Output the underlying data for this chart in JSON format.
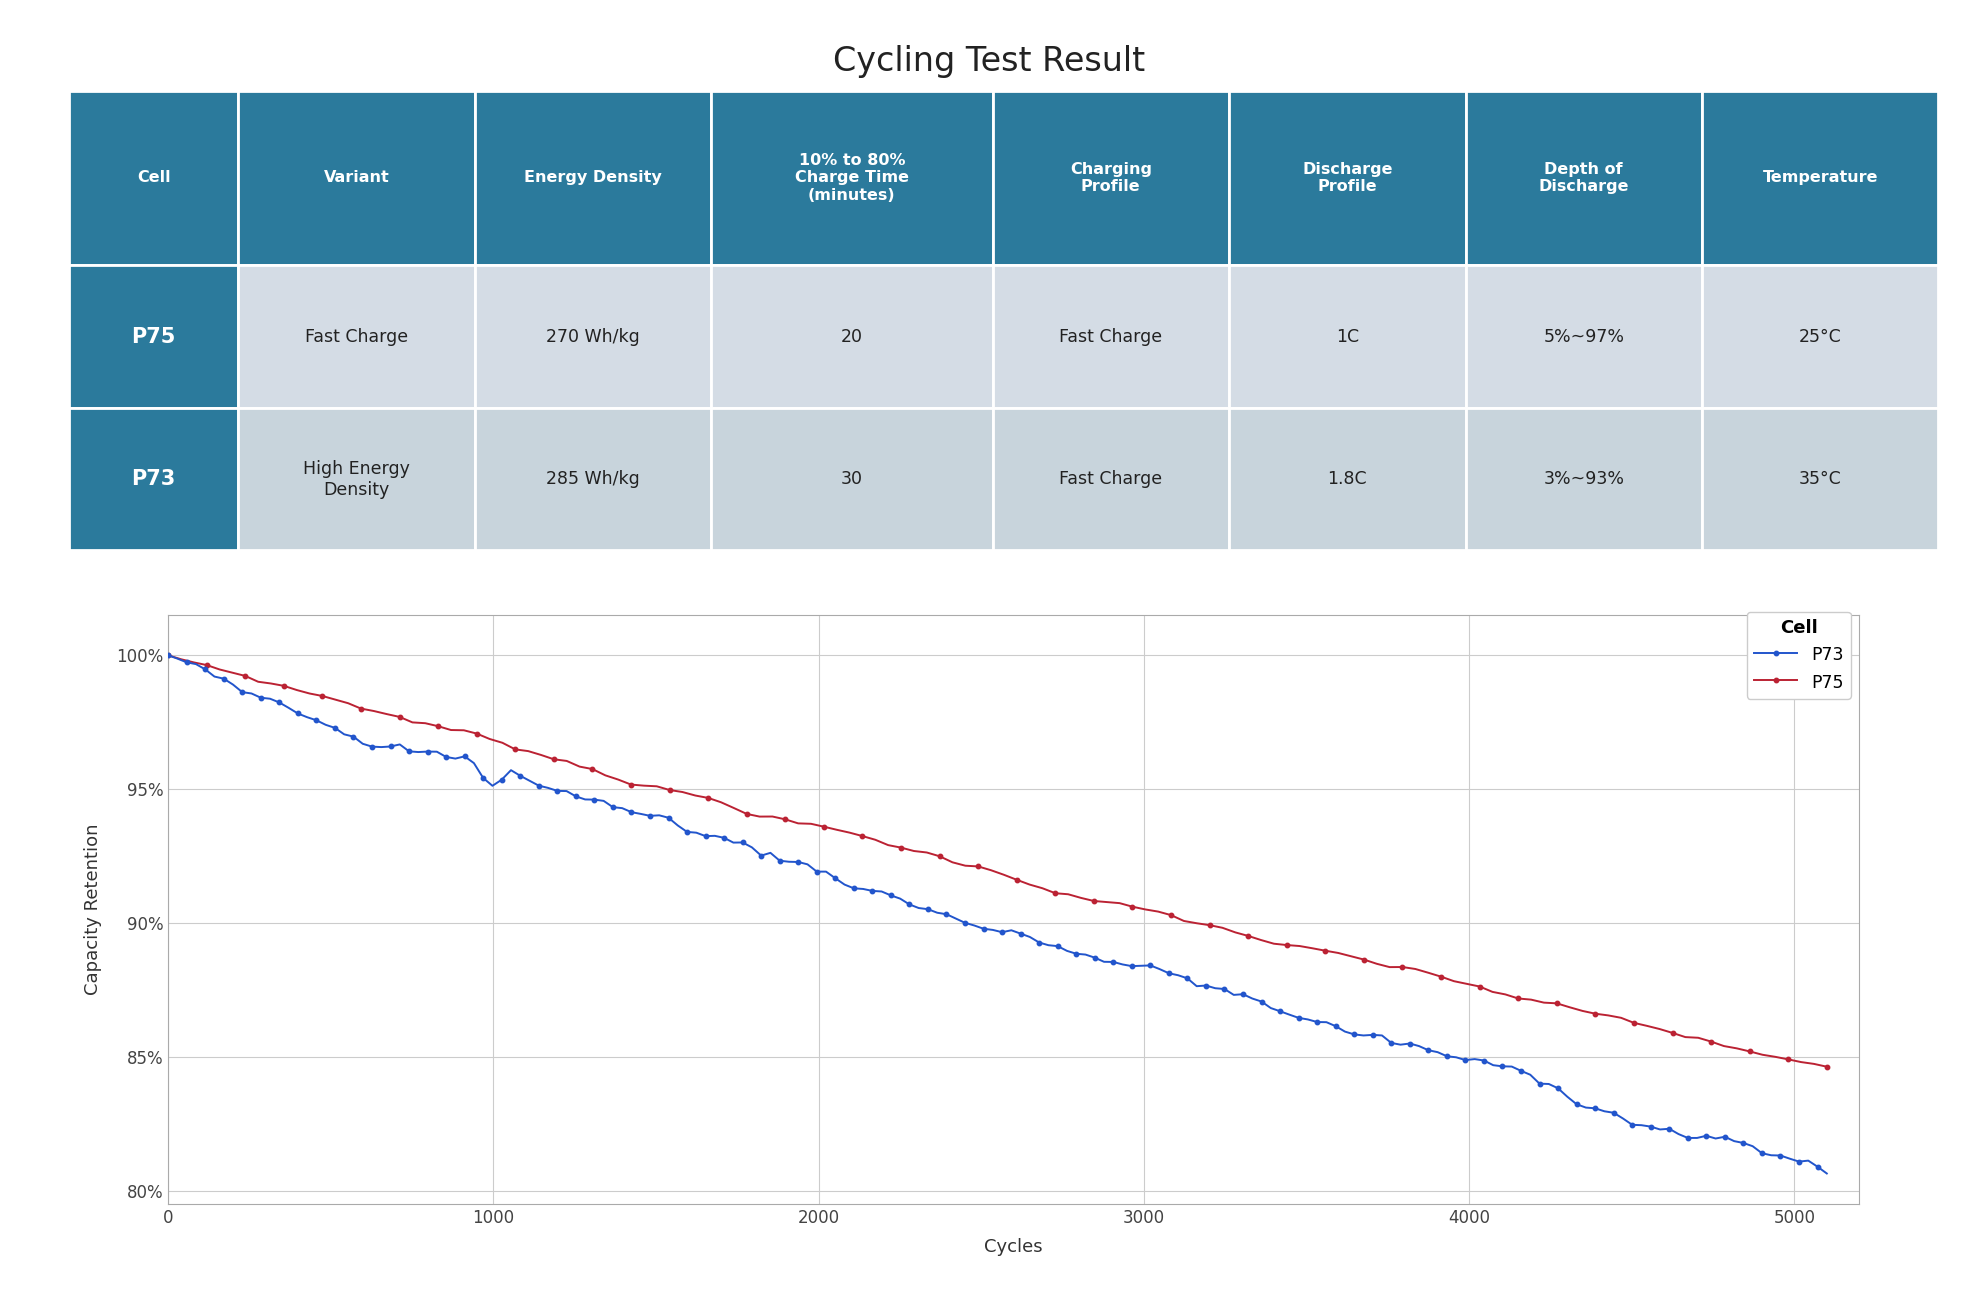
{
  "title": "Cycling Test Result",
  "title_fontsize": 24,
  "title_fontweight": "normal",
  "table": {
    "headers": [
      "Cell",
      "Variant",
      "Energy Density",
      "10% to 80%\nCharge Time\n(minutes)",
      "Charging\nProfile",
      "Discharge\nProfile",
      "Depth of\nDischarge",
      "Temperature"
    ],
    "rows": [
      [
        "P75",
        "Fast Charge",
        "270 Wh/kg",
        "20",
        "Fast Charge",
        "1C",
        "5%~97%",
        "25°C"
      ],
      [
        "P73",
        "High Energy\nDensity",
        "285 Wh/kg",
        "30",
        "Fast Charge",
        "1.8C",
        "3%~93%",
        "35°C"
      ]
    ],
    "header_bg": "#2B7A9C",
    "header_text": "#FFFFFF",
    "row1_bg": "#D4DCE5",
    "row2_bg": "#C8D4DC",
    "cell_text": "#222222",
    "col0_bg": "#2B7A9C",
    "col0_text": "#FFFFFF",
    "col_widths": [
      0.75,
      1.05,
      1.05,
      1.25,
      1.05,
      1.05,
      1.05,
      1.05
    ],
    "border_color": "#FFFFFF",
    "border_lw": 2.0
  },
  "chart": {
    "xlabel": "Cycles",
    "ylabel": "Capacity Retention",
    "xlim": [
      0,
      5200
    ],
    "ylim": [
      79.5,
      101.5
    ],
    "yticks": [
      80,
      85,
      90,
      95,
      100
    ],
    "xticks": [
      0,
      1000,
      2000,
      3000,
      4000,
      5000
    ],
    "grid_color": "#CCCCCC",
    "p73_color": "#2255CC",
    "p75_color": "#BB2233",
    "legend_title": "Cell",
    "bg_color": "#FFFFFF",
    "spine_color": "#AAAAAA"
  }
}
